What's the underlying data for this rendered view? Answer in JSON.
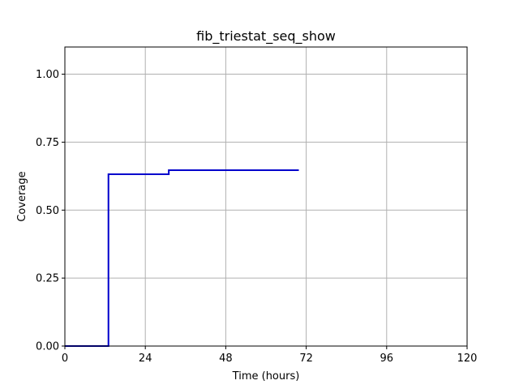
{
  "chart_data": {
    "type": "line",
    "title": "fib_triestat_seq_show",
    "xlabel": "Time (hours)",
    "ylabel": "Coverage",
    "xlim": [
      0,
      120
    ],
    "ylim": [
      0,
      1.1
    ],
    "x_ticks": [
      0,
      24,
      48,
      72,
      96,
      120
    ],
    "x_tick_labels": [
      "0",
      "24",
      "48",
      "72",
      "96",
      "120"
    ],
    "y_ticks": [
      0.0,
      0.25,
      0.5,
      0.75,
      1.0
    ],
    "y_tick_labels": [
      "0.00",
      "0.25",
      "0.50",
      "0.75",
      "1.00"
    ],
    "grid": true,
    "step": "post",
    "series": [
      {
        "color": "#0000cc",
        "points": [
          [
            0,
            0.0
          ],
          [
            12.9,
            0.0
          ],
          [
            13.0,
            0.632
          ],
          [
            30.8,
            0.632
          ],
          [
            31.0,
            0.647
          ],
          [
            69.8,
            0.647
          ]
        ]
      }
    ]
  }
}
